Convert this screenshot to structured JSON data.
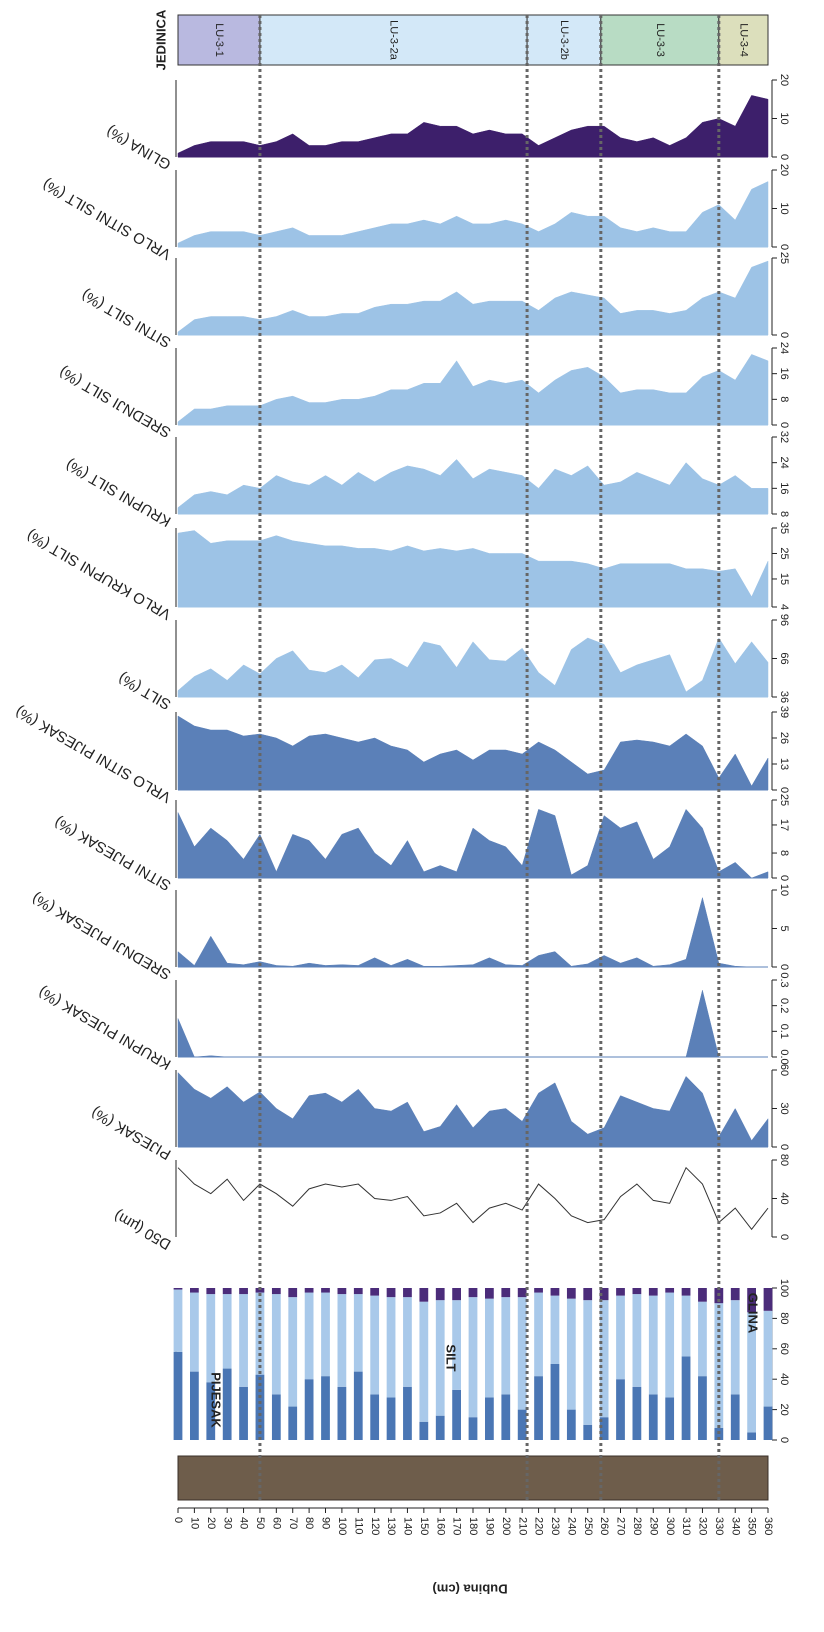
{
  "chart_data": {
    "type": "stratigraphic-panels",
    "x_label": "Dubina (cm)",
    "xlim": [
      0,
      360
    ],
    "xticks": [
      0,
      10,
      20,
      30,
      40,
      50,
      60,
      70,
      80,
      90,
      100,
      110,
      120,
      130,
      140,
      150,
      160,
      170,
      180,
      190,
      200,
      210,
      220,
      230,
      240,
      250,
      260,
      270,
      280,
      290,
      300,
      310,
      320,
      330,
      340,
      350,
      360
    ],
    "x": [
      0,
      10,
      20,
      30,
      40,
      50,
      60,
      70,
      80,
      90,
      100,
      110,
      120,
      130,
      140,
      150,
      160,
      170,
      180,
      190,
      200,
      210,
      220,
      230,
      240,
      250,
      260,
      270,
      280,
      290,
      300,
      310,
      320,
      330,
      340,
      350,
      360
    ],
    "zones_title": "JEDINICA",
    "zones": [
      {
        "label": "LU-3-1",
        "start": 0,
        "end": 50,
        "color": "#b9b9e0"
      },
      {
        "label": "LU-3-2a",
        "start": 50,
        "end": 213,
        "color": "#d3e8f8"
      },
      {
        "label": "LU-3-2b",
        "start": 213,
        "end": 258,
        "color": "#d3e8f8"
      },
      {
        "label": "LU-3-3",
        "start": 258,
        "end": 330,
        "color": "#b8dcc4"
      },
      {
        "label": "LU-3-4",
        "start": 330,
        "end": 360,
        "color": "#dcdfbc"
      }
    ],
    "panels": [
      {
        "type": "area",
        "title": "GLINA (%)",
        "color": "#3d1f6b",
        "ylim": [
          0,
          20
        ],
        "yticks": [
          0,
          10,
          20
        ],
        "values": [
          1,
          3,
          4,
          4,
          4,
          3,
          4,
          6,
          3,
          3,
          4,
          4,
          5,
          6,
          6,
          9,
          8,
          8,
          6,
          7,
          6,
          6,
          3,
          5,
          7,
          8,
          8,
          5,
          4,
          5,
          3,
          5,
          9,
          10,
          8,
          16,
          15
        ]
      },
      {
        "type": "area",
        "title": "VRLO SITNI SILT (%)",
        "color": "#9dc3e6",
        "ylim": [
          0,
          20
        ],
        "yticks": [
          0,
          10,
          20
        ],
        "values": [
          1,
          3,
          4,
          4,
          4,
          3,
          4,
          5,
          3,
          3,
          3,
          4,
          5,
          6,
          6,
          7,
          6,
          8,
          6,
          6,
          7,
          6,
          4,
          6,
          9,
          8,
          8,
          5,
          4,
          5,
          4,
          4,
          9,
          11,
          7,
          15,
          17
        ]
      },
      {
        "type": "area",
        "title": "SITNI SILT (%)",
        "color": "#9dc3e6",
        "ylim": [
          0,
          25
        ],
        "yticks": [
          0,
          25
        ],
        "values": [
          1,
          5,
          6,
          6,
          6,
          5,
          6,
          8,
          6,
          6,
          7,
          7,
          9,
          10,
          10,
          11,
          11,
          14,
          10,
          11,
          11,
          11,
          8,
          12,
          14,
          13,
          12,
          7,
          8,
          8,
          7,
          8,
          12,
          14,
          12,
          22,
          24
        ]
      },
      {
        "type": "area",
        "title": "SREDNJI SILT (%)",
        "color": "#9dc3e6",
        "ylim": [
          0,
          24
        ],
        "yticks": [
          0,
          8,
          16,
          24
        ],
        "values": [
          1,
          5,
          5,
          6,
          6,
          6,
          8,
          9,
          7,
          7,
          8,
          8,
          9,
          11,
          11,
          13,
          13,
          20,
          12,
          14,
          13,
          14,
          10,
          14,
          17,
          18,
          15,
          10,
          11,
          11,
          10,
          10,
          15,
          17,
          14,
          22,
          20
        ]
      },
      {
        "type": "area",
        "title": "KRUPNI SILT (%)",
        "color": "#9dc3e6",
        "ylim": [
          8,
          32
        ],
        "yticks": [
          8,
          16,
          24,
          32
        ],
        "values": [
          10,
          14,
          15,
          14,
          17,
          16,
          20,
          18,
          17,
          20,
          17,
          21,
          18,
          21,
          23,
          22,
          20,
          25,
          19,
          22,
          21,
          20,
          16,
          22,
          20,
          23,
          17,
          18,
          21,
          19,
          17,
          24,
          19,
          17,
          20,
          16,
          16
        ]
      },
      {
        "type": "area",
        "title": "VRLO KRUPNI SILT (%)",
        "color": "#9dc3e6",
        "ylim": [
          4,
          35
        ],
        "yticks": [
          4,
          15,
          25,
          35
        ],
        "values": [
          33,
          34,
          29,
          30,
          30,
          30,
          32,
          30,
          29,
          28,
          28,
          27,
          27,
          26,
          28,
          26,
          27,
          26,
          27,
          25,
          25,
          25,
          22,
          22,
          22,
          21,
          19,
          21,
          21,
          21,
          21,
          19,
          19,
          18,
          19,
          8,
          22
        ]
      },
      {
        "type": "area",
        "title": "SILT (%)",
        "color": "#9dc3e6",
        "ylim": [
          36,
          96
        ],
        "yticks": [
          36,
          66,
          96
        ],
        "values": [
          41,
          52,
          58,
          49,
          61,
          54,
          66,
          72,
          57,
          55,
          61,
          51,
          65,
          66,
          59,
          79,
          76,
          59,
          79,
          65,
          64,
          74,
          55,
          45,
          73,
          82,
          77,
          55,
          61,
          65,
          69,
          40,
          49,
          82,
          62,
          79,
          63
        ]
      },
      {
        "type": "area",
        "title": "VRLO SITNI PIJESAK (%)",
        "color": "#5b80b8",
        "ylim": [
          0,
          39
        ],
        "yticks": [
          0,
          13,
          26,
          39
        ],
        "values": [
          37,
          32,
          30,
          30,
          27,
          28,
          26,
          22,
          27,
          28,
          26,
          24,
          26,
          22,
          20,
          14,
          18,
          20,
          15,
          20,
          20,
          18,
          24,
          20,
          14,
          8,
          10,
          24,
          25,
          24,
          22,
          28,
          22,
          6,
          18,
          2,
          16
        ]
      },
      {
        "type": "area",
        "title": "SITNI PIJESAK (%)",
        "color": "#5b80b8",
        "ylim": [
          0,
          25
        ],
        "yticks": [
          0,
          8,
          17,
          25
        ],
        "values": [
          21,
          10,
          16,
          12,
          6,
          14,
          2,
          14,
          12,
          6,
          14,
          16,
          8,
          4,
          12,
          2,
          4,
          2,
          16,
          12,
          10,
          4,
          22,
          20,
          1,
          4,
          20,
          16,
          18,
          6,
          10,
          22,
          16,
          2,
          5,
          0,
          2
        ]
      },
      {
        "type": "area",
        "title": "SREDNJI PIJESAK (%)",
        "color": "#5b80b8",
        "ylim": [
          0,
          10
        ],
        "yticks": [
          0,
          5,
          10
        ],
        "values": [
          2,
          0.2,
          4,
          0.5,
          0.3,
          0.7,
          0.2,
          0.1,
          0.5,
          0.2,
          0.3,
          0.2,
          1.2,
          0.2,
          1,
          0.1,
          0.1,
          0.2,
          0.3,
          1.2,
          0.3,
          0.2,
          1.5,
          2,
          0.1,
          0.4,
          1.5,
          0.5,
          1.2,
          0.1,
          0.3,
          1,
          9,
          0.5,
          0.1,
          0,
          0
        ]
      },
      {
        "type": "area",
        "title": "KRUPNI PIJESAK (%)",
        "color": "#5b80b8",
        "ylim": [
          0,
          0.3
        ],
        "yticks": [
          {
            "value": 0,
            "label": "0.0"
          },
          0.1,
          0.2,
          0.3
        ],
        "values": [
          0.15,
          0,
          0.005,
          0,
          0,
          0,
          0,
          0,
          0,
          0,
          0,
          0,
          0,
          0,
          0,
          0,
          0,
          0,
          0,
          0,
          0,
          0,
          0,
          0,
          0,
          0,
          0,
          0,
          0,
          0,
          0,
          0,
          0.26,
          0,
          0,
          0,
          0
        ]
      },
      {
        "type": "area",
        "title": "PIJESAK (%)",
        "color": "#5b80b8",
        "ylim": [
          0,
          60
        ],
        "yticks": [
          0,
          30,
          60
        ],
        "values": [
          58,
          45,
          38,
          47,
          35,
          43,
          30,
          22,
          40,
          42,
          35,
          45,
          30,
          28,
          35,
          12,
          16,
          33,
          15,
          28,
          30,
          20,
          42,
          50,
          20,
          10,
          15,
          40,
          35,
          30,
          28,
          55,
          42,
          8,
          30,
          5,
          22
        ]
      },
      {
        "type": "line",
        "title": "D50 (µm)",
        "color": "#333333",
        "ylim": [
          0,
          80
        ],
        "yticks": [
          0,
          40,
          80
        ],
        "values": [
          72,
          55,
          45,
          60,
          38,
          55,
          45,
          32,
          50,
          55,
          52,
          55,
          40,
          38,
          42,
          22,
          25,
          35,
          15,
          30,
          35,
          28,
          55,
          40,
          22,
          15,
          18,
          42,
          55,
          38,
          35,
          72,
          55,
          15,
          30,
          8,
          30
        ]
      },
      {
        "type": "stacked-bar",
        "ylim": [
          0,
          100
        ],
        "yticks": [
          0,
          20,
          40,
          60,
          80,
          100
        ],
        "series": [
          {
            "name": "PIJESAK",
            "color": "#4a76b4",
            "values": [
              58,
              45,
              38,
              47,
              35,
              43,
              30,
              22,
              40,
              42,
              35,
              45,
              30,
              28,
              35,
              12,
              16,
              33,
              15,
              28,
              30,
              20,
              42,
              50,
              20,
              10,
              15,
              40,
              35,
              30,
              28,
              55,
              42,
              8,
              30,
              5,
              22
            ]
          },
          {
            "name": "SILT",
            "color": "#a9c9ea",
            "values": [
              41,
              52,
              58,
              49,
              61,
              54,
              66,
              72,
              57,
              55,
              61,
              51,
              65,
              66,
              59,
              79,
              76,
              59,
              79,
              65,
              64,
              74,
              55,
              45,
              73,
              82,
              77,
              55,
              61,
              65,
              69,
              40,
              49,
              82,
              62,
              79,
              63
            ]
          },
          {
            "name": "GLINA",
            "color": "#4b2c7a",
            "values": [
              1,
              3,
              4,
              4,
              4,
              3,
              4,
              6,
              3,
              3,
              4,
              4,
              5,
              6,
              6,
              9,
              8,
              8,
              6,
              7,
              6,
              6,
              3,
              5,
              7,
              8,
              8,
              5,
              4,
              5,
              3,
              5,
              9,
              10,
              8,
              16,
              15
            ]
          }
        ]
      }
    ]
  }
}
